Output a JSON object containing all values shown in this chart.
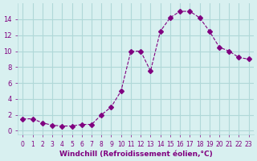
{
  "x": [
    0,
    1,
    2,
    3,
    4,
    5,
    6,
    7,
    8,
    9,
    10,
    11,
    12,
    13,
    14,
    15,
    16,
    17,
    18,
    19,
    20,
    21,
    22,
    23
  ],
  "y": [
    1.5,
    1.5,
    1.0,
    0.7,
    0.6,
    0.6,
    0.8,
    0.8,
    2.0,
    3.0,
    5.0,
    10.0,
    10.0,
    7.5,
    12.5,
    14.2,
    15.0,
    15.0,
    14.2,
    12.5,
    10.5,
    10.0,
    9.2,
    9.0
  ],
  "line_color": "#800080",
  "marker": "D",
  "marker_size": 3,
  "line_width": 0.8,
  "bg_color": "#d8f0f0",
  "grid_color": "#b0d8d8",
  "xlabel": "Windchill (Refroidissement éolien,°C)",
  "xlabel_color": "#800080",
  "tick_color": "#800080",
  "xlim": [
    -0.5,
    23.5
  ],
  "ylim": [
    -0.5,
    16
  ],
  "yticks": [
    0,
    2,
    4,
    6,
    8,
    10,
    12,
    14
  ],
  "xticks": [
    0,
    1,
    2,
    3,
    4,
    5,
    6,
    7,
    8,
    9,
    10,
    11,
    12,
    13,
    14,
    15,
    16,
    17,
    18,
    19,
    20,
    21,
    22,
    23
  ]
}
